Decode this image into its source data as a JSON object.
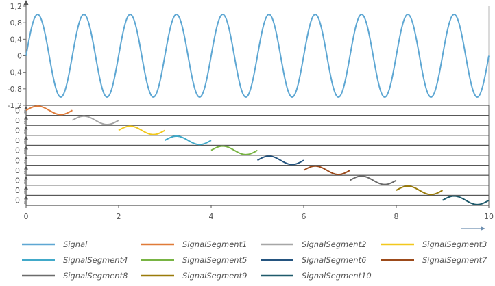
{
  "chart_data": {
    "type": "line",
    "title": "",
    "top_panel": {
      "series": [
        {
          "name": "Signal",
          "function": "sin",
          "frequency": 1,
          "amplitude": 1,
          "color": "#5ea7d3"
        }
      ],
      "xlim": [
        0,
        10
      ],
      "ylim": [
        -1.2,
        1.2
      ],
      "y_ticks": [
        "1,2",
        "0,8",
        "0,4",
        "0",
        "-0,4",
        "-0,8",
        "-1,2"
      ]
    },
    "bottom_panel": {
      "rows": 10,
      "row_y_label": "0",
      "series": [
        {
          "name": "SignalSegment1",
          "x_range": [
            0,
            1
          ],
          "color": "#e07b39"
        },
        {
          "name": "SignalSegment2",
          "x_range": [
            1,
            2
          ],
          "color": "#a6a6a6"
        },
        {
          "name": "SignalSegment3",
          "x_range": [
            2,
            3
          ],
          "color": "#f2c81d"
        },
        {
          "name": "SignalSegment4",
          "x_range": [
            3,
            4
          ],
          "color": "#41a9c9"
        },
        {
          "name": "SignalSegment5",
          "x_range": [
            4,
            5
          ],
          "color": "#78b443"
        },
        {
          "name": "SignalSegment6",
          "x_range": [
            5,
            6
          ],
          "color": "#24547f"
        },
        {
          "name": "SignalSegment7",
          "x_range": [
            6,
            7
          ],
          "color": "#9c4a1a"
        },
        {
          "name": "SignalSegment8",
          "x_range": [
            7,
            8
          ],
          "color": "#6b6b6b"
        },
        {
          "name": "SignalSegment9",
          "x_range": [
            8,
            9
          ],
          "color": "#9a7b0a"
        },
        {
          "name": "SignalSegment10",
          "x_range": [
            9,
            10
          ],
          "color": "#1f5a6b"
        }
      ]
    },
    "xlim": [
      0,
      10
    ],
    "x_ticks": [
      "0",
      "2",
      "4",
      "6",
      "8",
      "10"
    ],
    "grid": false,
    "legend_position": "bottom"
  }
}
